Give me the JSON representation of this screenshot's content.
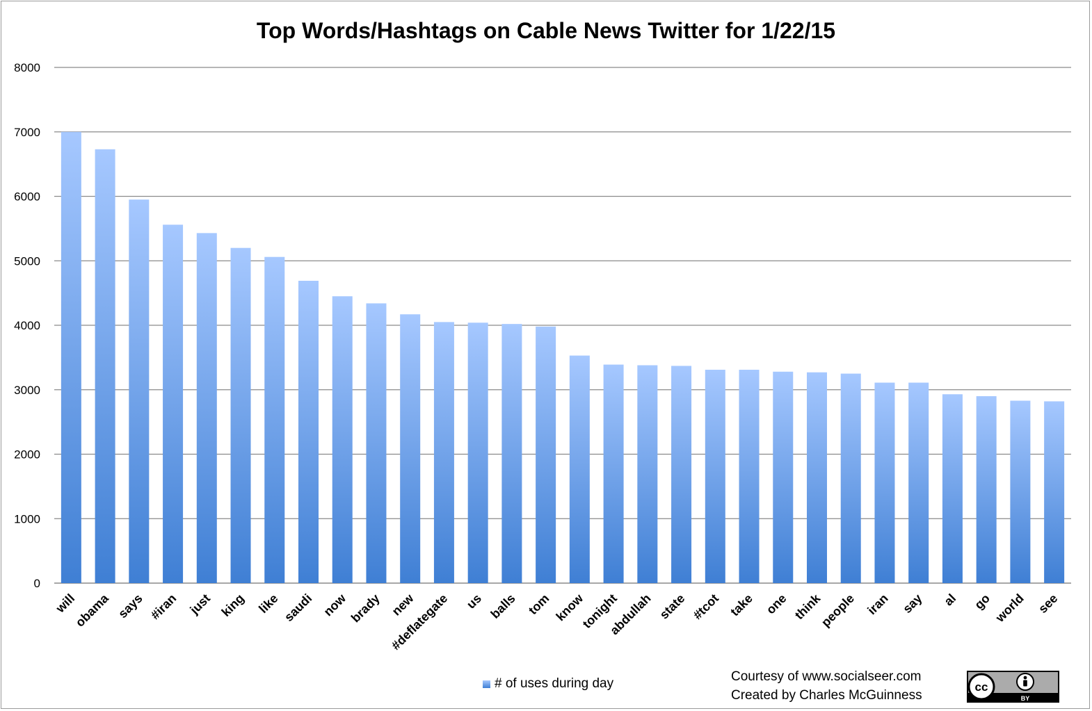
{
  "chart_data": {
    "type": "bar",
    "title": "Top Words/Hashtags on Cable News Twitter for 1/22/15",
    "categories": [
      "will",
      "obama",
      "says",
      "#iran",
      "just",
      "king",
      "like",
      "saudi",
      "now",
      "brady",
      "new",
      "#deflategate",
      "us",
      "balls",
      "tom",
      "know",
      "tonight",
      "abdullah",
      "state",
      "#tcot",
      "take",
      "one",
      "think",
      "people",
      "iran",
      "say",
      "al",
      "go",
      "world",
      "see"
    ],
    "series": [
      {
        "name": "# of uses during day",
        "values": [
          7000,
          6730,
          5950,
          5560,
          5430,
          5200,
          5060,
          4690,
          4450,
          4340,
          4170,
          4050,
          4040,
          4020,
          3980,
          3530,
          3390,
          3380,
          3370,
          3310,
          3310,
          3280,
          3270,
          3250,
          3110,
          3110,
          2930,
          2900,
          2830,
          2820
        ]
      }
    ],
    "ylim": [
      0,
      8000
    ],
    "yticks": [
      0,
      1000,
      2000,
      3000,
      4000,
      5000,
      6000,
      7000,
      8000
    ],
    "grid": true,
    "legend_position": "bottom",
    "colors": {
      "bar_top": "#a6c8ff",
      "bar_bottom": "#3f7fd4",
      "grid": "#8a8a8a"
    }
  },
  "credits": {
    "line1": "Courtesy of www.socialseer.com",
    "line2": "Created by Charles McGuinness"
  },
  "license_badge": {
    "icon": "creative-commons-by-icon",
    "text": "BY"
  }
}
